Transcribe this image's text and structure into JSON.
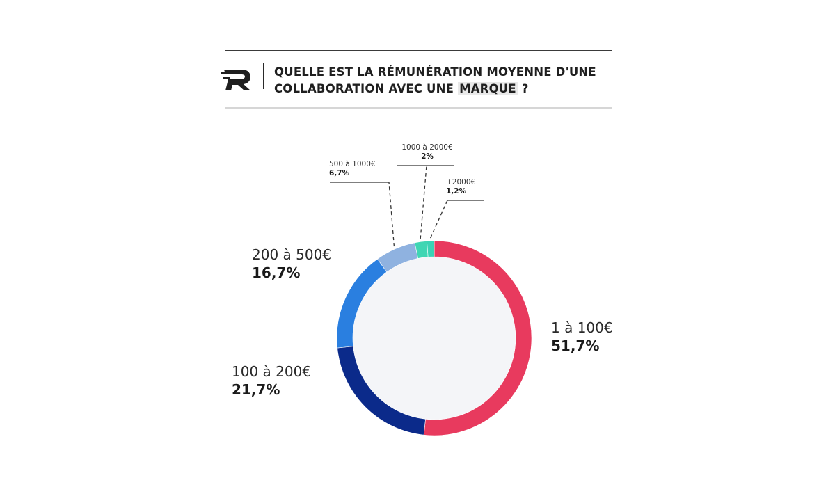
{
  "header": {
    "logo_icon": "r-logo-icon",
    "title_line1": "QUELLE EST LA RÉMUNÉRATION MOYENNE D'UNE",
    "title_line2_pre": "COLLABORATION AVEC UNE ",
    "title_line2_highlight": "MARQUE",
    "title_line2_post": " ?"
  },
  "chart_data": {
    "type": "pie",
    "donut": true,
    "title": "QUELLE EST LA RÉMUNÉRATION MOYENNE D'UNE COLLABORATION AVEC UNE MARQUE ?",
    "categories": [
      "1 à 100€",
      "100 à 200€",
      "200 à 500€",
      "500 à 1000€",
      "1000 à 2000€",
      "+2000€"
    ],
    "values": [
      51.7,
      21.7,
      16.7,
      6.7,
      2,
      1.2
    ],
    "value_labels": [
      "51,7%",
      "21,7%",
      "16,7%",
      "6,7%",
      "2%",
      "1,2%"
    ],
    "colors": [
      "#e83a5e",
      "#0b2a8a",
      "#2a7fe0",
      "#8fb2e0",
      "#3fd6b3",
      "#3ad3b5"
    ],
    "legend": "none"
  },
  "colors": {
    "inner_fill": "#f4f5f8",
    "leader_line": "#333333"
  }
}
